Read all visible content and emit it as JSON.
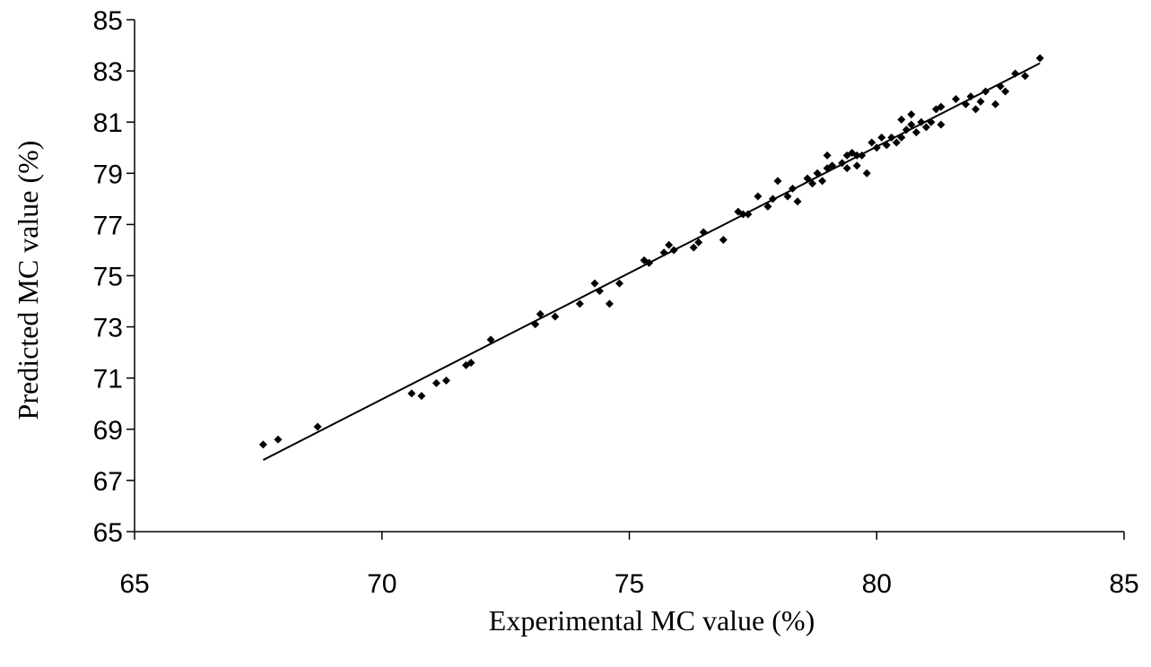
{
  "chart_data": {
    "type": "scatter",
    "title": "",
    "xlabel": "Experimental MC value (%)",
    "ylabel": "Predicted MC value (%)",
    "xlim": [
      65,
      85
    ],
    "ylim": [
      65,
      85
    ],
    "x_ticks": [
      65,
      70,
      75,
      80,
      85
    ],
    "y_ticks": [
      65,
      67,
      69,
      71,
      73,
      75,
      77,
      79,
      81,
      83,
      85
    ],
    "x_tick_labels": [
      "65",
      "70",
      "75",
      "80",
      "85"
    ],
    "y_tick_labels": [
      "65",
      "67",
      "69",
      71,
      "73",
      "75",
      "77",
      "79",
      "81",
      "83",
      "85"
    ],
    "grid": false,
    "legend": "none",
    "marker": "diamond",
    "colors": {
      "points": "#000000",
      "trendline": "#000000",
      "axes": "#000000"
    },
    "trendline": {
      "x": [
        67.6,
        83.3
      ],
      "y": [
        67.8,
        83.3
      ]
    },
    "points": [
      [
        67.6,
        68.4
      ],
      [
        67.9,
        68.6
      ],
      [
        68.7,
        69.1
      ],
      [
        70.6,
        70.4
      ],
      [
        70.8,
        70.3
      ],
      [
        71.1,
        70.8
      ],
      [
        71.3,
        70.9
      ],
      [
        71.7,
        71.5
      ],
      [
        71.8,
        71.6
      ],
      [
        72.2,
        72.5
      ],
      [
        73.1,
        73.1
      ],
      [
        73.2,
        73.5
      ],
      [
        73.5,
        73.4
      ],
      [
        74.0,
        73.9
      ],
      [
        74.3,
        74.7
      ],
      [
        74.4,
        74.4
      ],
      [
        74.6,
        73.9
      ],
      [
        74.8,
        74.7
      ],
      [
        75.3,
        75.6
      ],
      [
        75.4,
        75.5
      ],
      [
        75.7,
        75.9
      ],
      [
        75.8,
        76.2
      ],
      [
        75.9,
        76.0
      ],
      [
        76.3,
        76.1
      ],
      [
        76.4,
        76.3
      ],
      [
        76.5,
        76.7
      ],
      [
        76.9,
        76.4
      ],
      [
        77.2,
        77.5
      ],
      [
        77.3,
        77.4
      ],
      [
        77.4,
        77.4
      ],
      [
        77.6,
        78.1
      ],
      [
        77.8,
        77.7
      ],
      [
        77.9,
        78.0
      ],
      [
        78.0,
        78.7
      ],
      [
        78.2,
        78.1
      ],
      [
        78.3,
        78.4
      ],
      [
        78.4,
        77.9
      ],
      [
        78.6,
        78.8
      ],
      [
        78.7,
        78.6
      ],
      [
        78.8,
        79.0
      ],
      [
        78.9,
        78.7
      ],
      [
        79.0,
        79.2
      ],
      [
        79.0,
        79.7
      ],
      [
        79.1,
        79.3
      ],
      [
        79.3,
        79.4
      ],
      [
        79.4,
        79.7
      ],
      [
        79.4,
        79.2
      ],
      [
        79.5,
        79.8
      ],
      [
        79.6,
        79.3
      ],
      [
        79.6,
        79.7
      ],
      [
        79.7,
        79.7
      ],
      [
        79.8,
        79.0
      ],
      [
        79.9,
        80.2
      ],
      [
        80.0,
        80.0
      ],
      [
        80.1,
        80.4
      ],
      [
        80.2,
        80.1
      ],
      [
        80.3,
        80.4
      ],
      [
        80.4,
        80.2
      ],
      [
        80.5,
        81.1
      ],
      [
        80.5,
        80.4
      ],
      [
        80.6,
        80.7
      ],
      [
        80.7,
        80.9
      ],
      [
        80.7,
        81.3
      ],
      [
        80.8,
        80.6
      ],
      [
        80.9,
        81.0
      ],
      [
        81.0,
        80.8
      ],
      [
        81.1,
        81.0
      ],
      [
        81.2,
        81.5
      ],
      [
        81.3,
        81.6
      ],
      [
        81.3,
        80.9
      ],
      [
        81.6,
        81.9
      ],
      [
        81.8,
        81.7
      ],
      [
        81.9,
        82.0
      ],
      [
        82.0,
        81.5
      ],
      [
        82.1,
        81.8
      ],
      [
        82.2,
        82.2
      ],
      [
        82.4,
        81.7
      ],
      [
        82.5,
        82.4
      ],
      [
        82.6,
        82.2
      ],
      [
        82.8,
        82.9
      ],
      [
        83.0,
        82.8
      ],
      [
        83.3,
        83.5
      ]
    ]
  }
}
